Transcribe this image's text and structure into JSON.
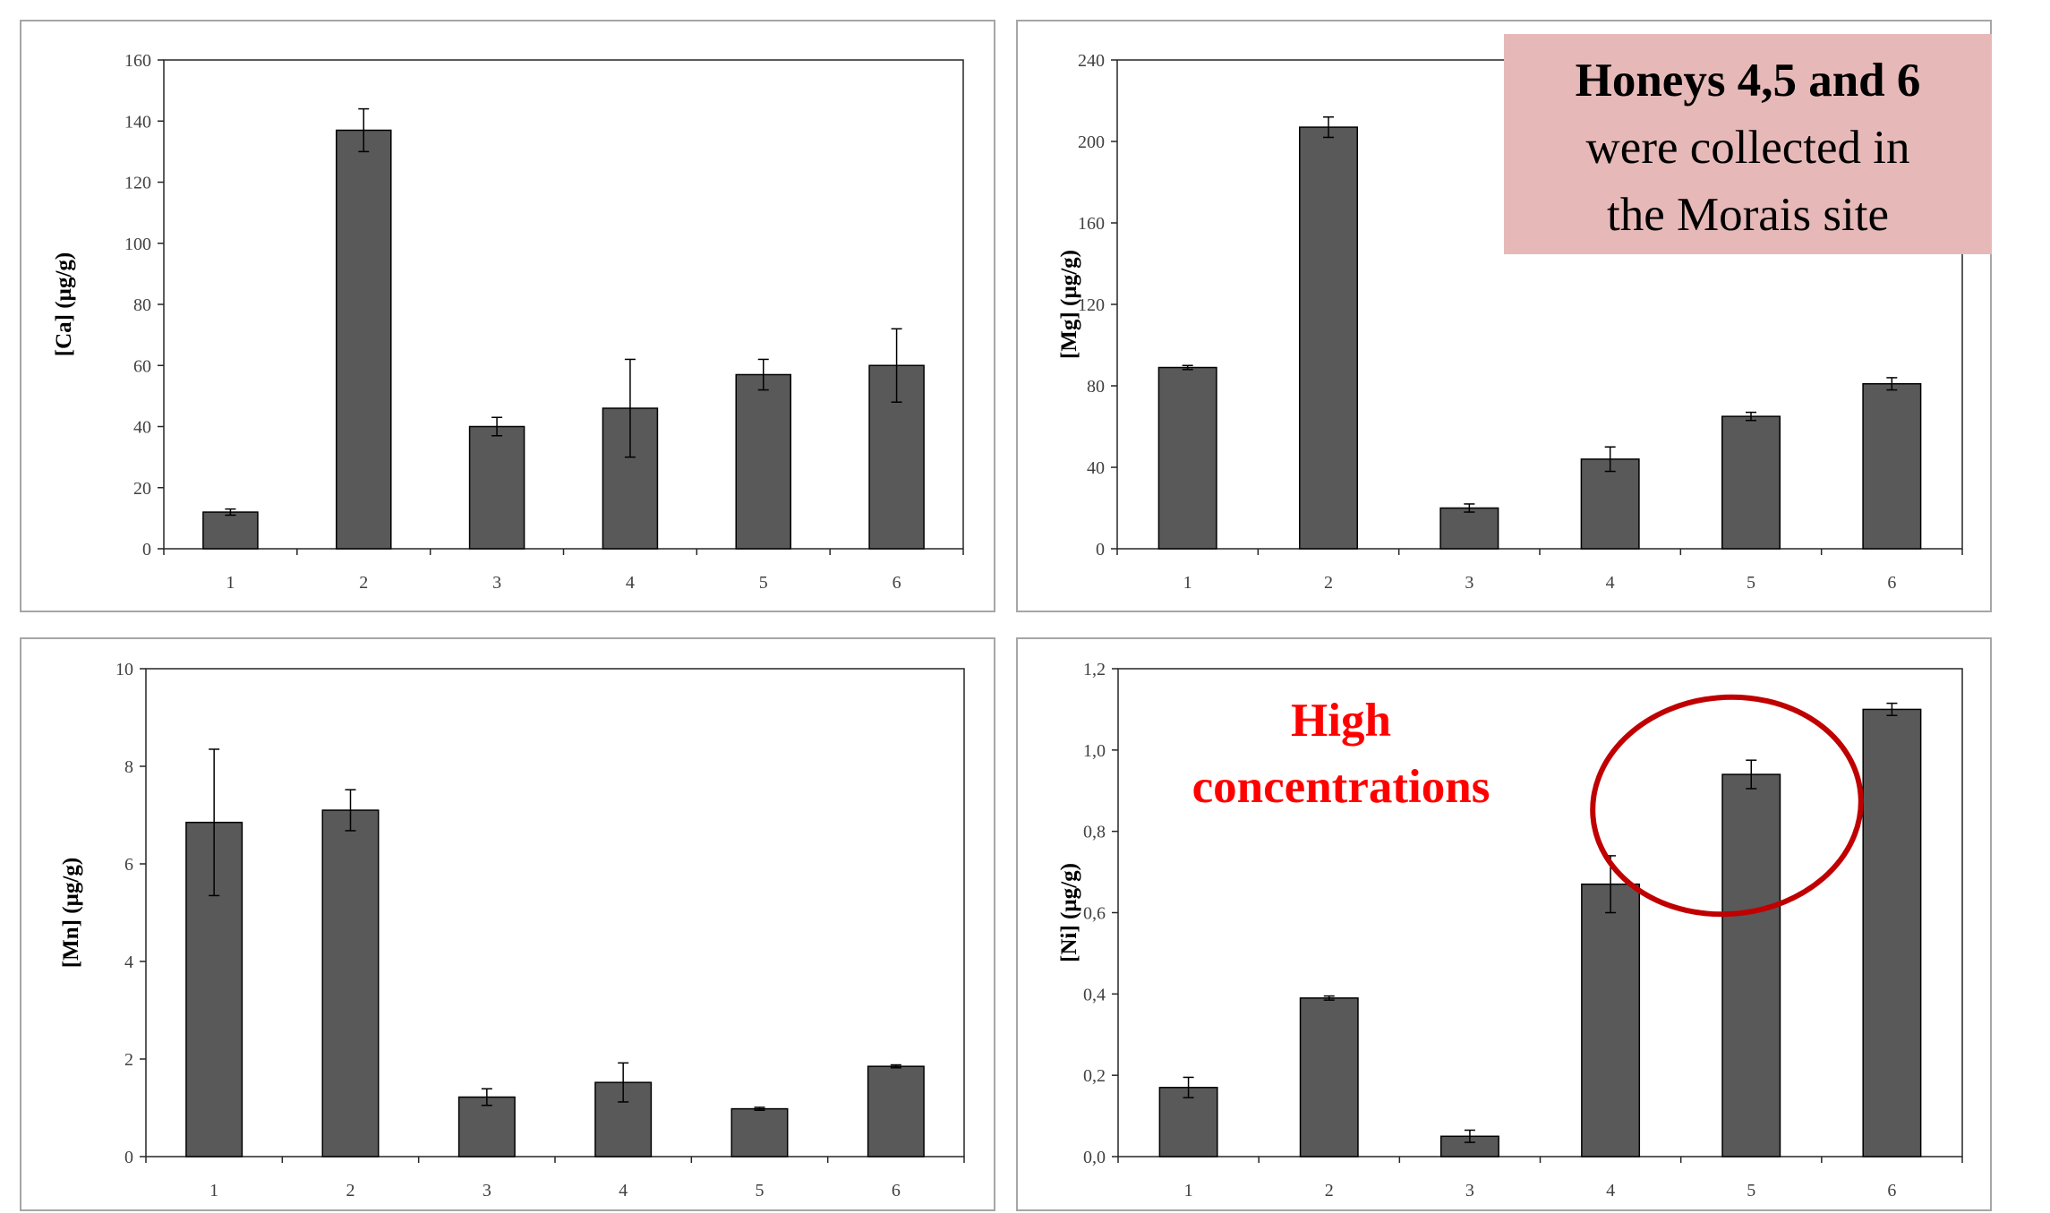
{
  "chart_data": [
    {
      "type": "bar",
      "categories": [
        "1",
        "2",
        "3",
        "4",
        "5",
        "6"
      ],
      "values": [
        12,
        137,
        40,
        46,
        57,
        60
      ],
      "errors": [
        1,
        7,
        3,
        16,
        5,
        12
      ],
      "ylabel": "[Ca] (µg/g)",
      "ylim": [
        0,
        160
      ],
      "yticks": [
        "0",
        "20",
        "40",
        "60",
        "80",
        "100",
        "120",
        "140",
        "160"
      ],
      "bar_color": "#595959",
      "grid": false
    },
    {
      "type": "bar",
      "categories": [
        "1",
        "2",
        "3",
        "4",
        "5",
        "6"
      ],
      "values": [
        89,
        207,
        20,
        44,
        65,
        81
      ],
      "errors": [
        1,
        5,
        2,
        6,
        2,
        3
      ],
      "ylabel": "[Mg] (µg/g)",
      "ylim": [
        0,
        240
      ],
      "yticks": [
        "0",
        "40",
        "80",
        "120",
        "160",
        "200",
        "240"
      ],
      "bar_color": "#595959",
      "grid": false
    },
    {
      "type": "bar",
      "categories": [
        "1",
        "2",
        "3",
        "4",
        "5",
        "6"
      ],
      "values": [
        6.85,
        7.1,
        1.22,
        1.52,
        0.98,
        1.85
      ],
      "errors": [
        1.5,
        0.42,
        0.17,
        0.4,
        0.03,
        0.03
      ],
      "ylabel": "[Mn] (µg/g)",
      "ylim": [
        0,
        10
      ],
      "yticks": [
        "0",
        "2",
        "4",
        "6",
        "8",
        "10"
      ],
      "bar_color": "#595959",
      "grid": false
    },
    {
      "type": "bar",
      "categories": [
        "1",
        "2",
        "3",
        "4",
        "5",
        "6"
      ],
      "values": [
        0.17,
        0.39,
        0.05,
        0.67,
        0.94,
        1.1
      ],
      "errors": [
        0.025,
        0.005,
        0.015,
        0.07,
        0.035,
        0.015
      ],
      "ylabel": "[Ni] (µg/g)",
      "ylim": [
        0,
        1.2
      ],
      "yticks": [
        "0,0",
        "0,2",
        "0,4",
        "0,6",
        "0,8",
        "1,0",
        "1,2"
      ],
      "bar_color": "#595959",
      "grid": false
    }
  ],
  "annotations": {
    "info_box": {
      "bold_text": "Honeys 4,5 and 6",
      "line2": "were collected in",
      "line3": "the Morais site",
      "background": "#e6b9b8"
    },
    "highlight": {
      "line1": "High",
      "line2": "concentrations",
      "color": "#ff0000",
      "ellipse_color": "#c00000"
    }
  }
}
